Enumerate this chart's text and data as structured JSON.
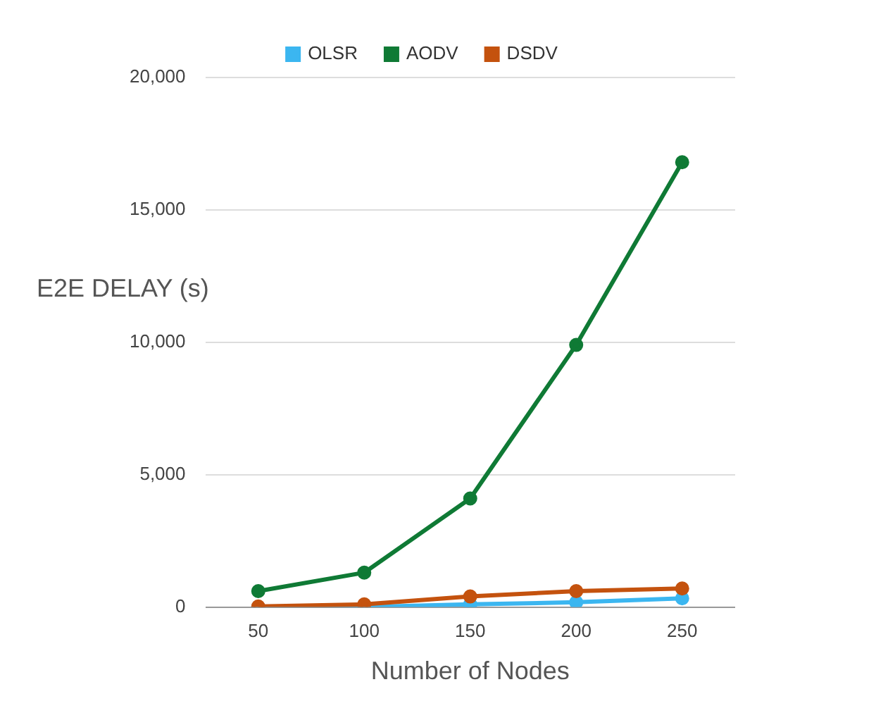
{
  "chart_data": {
    "type": "line",
    "xlabel": "Number of Nodes",
    "ylabel": "E2E DELAY (s)",
    "categories": [
      "50",
      "100",
      "150",
      "200",
      "250"
    ],
    "series": [
      {
        "name": "OLSR",
        "color": "#3bb6f0",
        "values": [
          0,
          0,
          100,
          180,
          330
        ]
      },
      {
        "name": "AODV",
        "color": "#0f7a35",
        "values": [
          600,
          1300,
          4100,
          9900,
          16800
        ]
      },
      {
        "name": "DSDV",
        "color": "#c4520e",
        "values": [
          20,
          100,
          400,
          600,
          700
        ]
      }
    ],
    "ylim": [
      0,
      20000
    ],
    "yticks": [
      {
        "value": 0,
        "label": "0"
      },
      {
        "value": 5000,
        "label": "5,000"
      },
      {
        "value": 10000,
        "label": "10,000"
      },
      {
        "value": 15000,
        "label": "15,000"
      },
      {
        "value": 20000,
        "label": "20,000"
      }
    ],
    "grid": "y",
    "legend": "top",
    "marker": "circle",
    "line_style": "solid"
  }
}
